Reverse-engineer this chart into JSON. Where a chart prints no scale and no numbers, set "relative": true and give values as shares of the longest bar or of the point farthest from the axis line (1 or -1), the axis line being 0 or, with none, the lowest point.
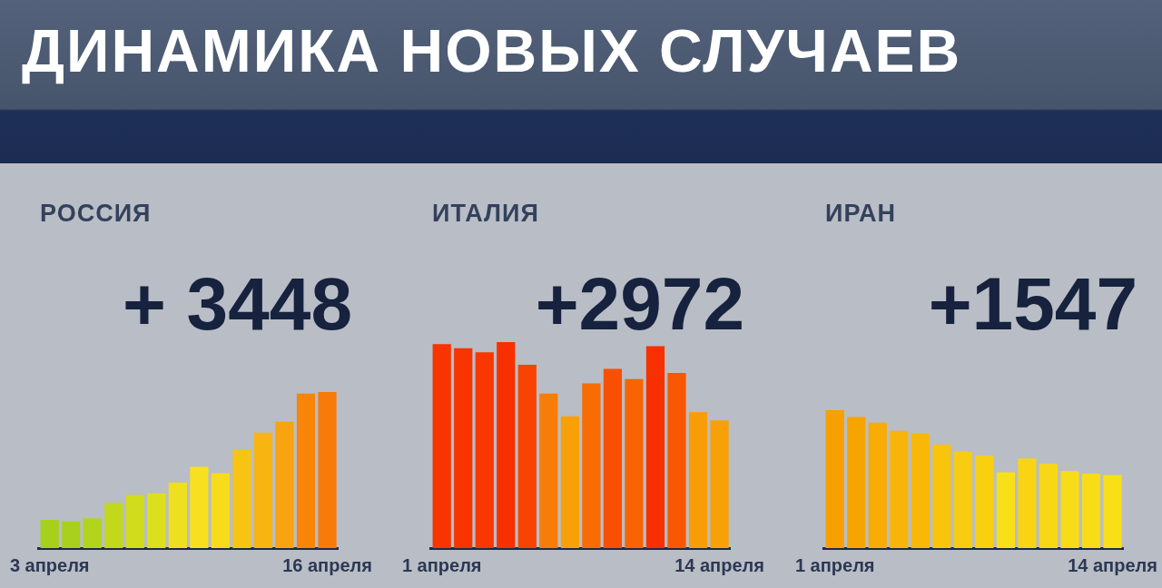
{
  "chart_data": [
    {
      "type": "other",
      "title": "ДИНАМИКА НОВЫХ СЛУЧАЕВ"
    },
    {
      "type": "bar",
      "title": "РОССИЯ",
      "subtitle": "+ 3448",
      "relative": true,
      "categories": [
        "3 апреля",
        null,
        null,
        null,
        null,
        null,
        null,
        null,
        null,
        null,
        null,
        null,
        null,
        "16 апреля"
      ],
      "values": [
        0.18,
        0.17,
        0.19,
        0.29,
        0.34,
        0.35,
        0.42,
        0.52,
        0.48,
        0.63,
        0.74,
        0.81,
        0.99,
        1
      ],
      "colors": [
        "#a6d01c",
        "#a8d01c",
        "#b2d41c",
        "#c2d81c",
        "#d0dc1c",
        "#dce01c",
        "#eee01e",
        "#f8e020",
        "#f8dc1c",
        "#f8c414",
        "#f8b410",
        "#f8a410",
        "#f88408",
        "#f87a08"
      ]
    },
    {
      "type": "bar",
      "title": "ИТАЛИЯ",
      "subtitle": "+2972",
      "relative": true,
      "categories": [
        "1 апреля",
        null,
        null,
        null,
        null,
        null,
        null,
        null,
        null,
        null,
        null,
        null,
        null,
        "14 апреля"
      ],
      "values": [
        0.99,
        0.97,
        0.95,
        1,
        0.89,
        0.75,
        0.64,
        0.8,
        0.87,
        0.82,
        0.98,
        0.85,
        0.66,
        0.62
      ],
      "colors": [
        "#f83400",
        "#f83400",
        "#f83800",
        "#f83000",
        "#f84400",
        "#f87c08",
        "#f8a008",
        "#f86c04",
        "#f85000",
        "#f86404",
        "#f83000",
        "#f85800",
        "#f89c08",
        "#f8a008"
      ]
    },
    {
      "type": "bar",
      "title": "ИРАН",
      "subtitle": "+1547",
      "relative": true,
      "categories": [
        "1 апреля",
        null,
        null,
        null,
        null,
        null,
        null,
        null,
        null,
        null,
        null,
        null,
        null,
        "14 апреля"
      ],
      "values": [
        1,
        0.95,
        0.91,
        0.85,
        0.83,
        0.75,
        0.7,
        0.67,
        0.55,
        0.65,
        0.61,
        0.56,
        0.54,
        0.53
      ],
      "colors": [
        "#f8a000",
        "#f8a400",
        "#f8ac04",
        "#f8b408",
        "#f8b808",
        "#f8c40c",
        "#f8cc10",
        "#f8d010",
        "#f8e018",
        "#f8d414",
        "#f8d814",
        "#f8dc18",
        "#f8dc18",
        "#f8e018"
      ]
    }
  ]
}
